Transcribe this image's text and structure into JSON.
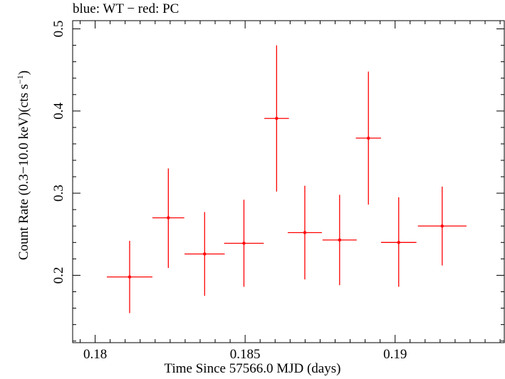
{
  "chart_data": {
    "type": "scatter",
    "title": "blue: WT − red: PC",
    "xlabel": "Time Since 57566.0 MJD (days)",
    "ylabel": "Count Rate (0.3−10.0 keV)(cts s",
    "ylabel_sup": "−1",
    "ylabel_tail": ")",
    "xlim": [
      0.17925,
      0.19364
    ],
    "ylim": [
      0.118,
      0.51
    ],
    "x_ticks": [
      0.18,
      0.185,
      0.19
    ],
    "x_tick_labels": [
      "0.18",
      "0.185",
      "0.19"
    ],
    "y_ticks": [
      0.2,
      0.3,
      0.4,
      0.5
    ],
    "y_tick_labels": [
      "0.2",
      "0.3",
      "0.4",
      "0.5"
    ],
    "grid": false,
    "series": [
      {
        "color": "#ff0000",
        "points": [
          {
            "x": 0.18115,
            "y": 0.198,
            "xerr": 0.00076,
            "yerr_low": 0.044,
            "yerr_high": 0.044
          },
          {
            "x": 0.18244,
            "y": 0.27,
            "xerr": 0.00053,
            "yerr_low": 0.061,
            "yerr_high": 0.06
          },
          {
            "x": 0.18365,
            "y": 0.226,
            "xerr": 0.00067,
            "yerr_low": 0.051,
            "yerr_high": 0.051
          },
          {
            "x": 0.18496,
            "y": 0.239,
            "xerr": 0.00066,
            "yerr_low": 0.053,
            "yerr_high": 0.053
          },
          {
            "x": 0.18605,
            "y": 0.391,
            "xerr": 0.00041,
            "yerr_low": 0.089,
            "yerr_high": 0.089
          },
          {
            "x": 0.18699,
            "y": 0.252,
            "xerr": 0.00057,
            "yerr_low": 0.057,
            "yerr_high": 0.057
          },
          {
            "x": 0.18815,
            "y": 0.243,
            "xerr": 0.00057,
            "yerr_low": 0.055,
            "yerr_high": 0.055
          },
          {
            "x": 0.18911,
            "y": 0.367,
            "xerr": 0.00042,
            "yerr_low": 0.081,
            "yerr_high": 0.081
          },
          {
            "x": 0.19012,
            "y": 0.24,
            "xerr": 0.00059,
            "yerr_low": 0.054,
            "yerr_high": 0.055
          },
          {
            "x": 0.19157,
            "y": 0.26,
            "xerr": 0.00081,
            "yerr_low": 0.048,
            "yerr_high": 0.048
          }
        ]
      }
    ]
  }
}
